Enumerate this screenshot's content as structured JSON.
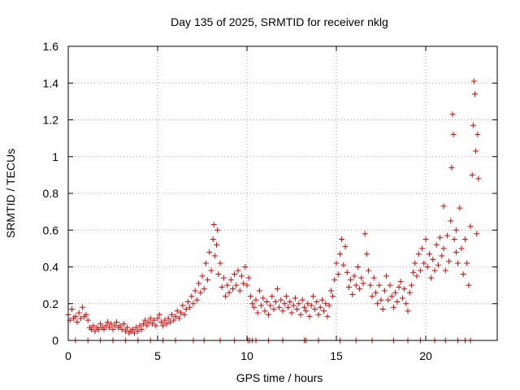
{
  "chart_data": {
    "type": "scatter",
    "title": "Day 135 of 2025, SRMTID for receiver nklg",
    "xlabel": "GPS time / hours",
    "ylabel": "SRMTID / TECUs",
    "xlim": [
      0,
      24
    ],
    "ylim": [
      0,
      1.6
    ],
    "xticks": [
      0,
      5,
      10,
      15,
      20
    ],
    "xtick_labels": [
      "0",
      "5",
      "10",
      "15",
      "20"
    ],
    "yticks": [
      0,
      0.2,
      0.4,
      0.6,
      0.8,
      1.0,
      1.2,
      1.4,
      1.6
    ],
    "ytick_labels": [
      "0",
      "0.2",
      "0.4",
      "0.6",
      "0.8",
      "1",
      "1.2",
      "1.4",
      "1.6"
    ],
    "grid": true,
    "marker": "+",
    "color": "#e00000",
    "series": [
      {
        "name": "SRMTID",
        "points": [
          [
            0.0,
            0.14
          ],
          [
            0.1,
            0.11
          ],
          [
            0.2,
            0.17
          ],
          [
            0.3,
            0.12
          ],
          [
            0.4,
            0.13
          ],
          [
            0.5,
            0.1
          ],
          [
            0.6,
            0.15
          ],
          [
            0.7,
            0.12
          ],
          [
            0.8,
            0.18
          ],
          [
            0.9,
            0.13
          ],
          [
            1.0,
            0.14
          ],
          [
            1.1,
            0.11
          ],
          [
            1.2,
            0.07
          ],
          [
            1.3,
            0.06
          ],
          [
            1.4,
            0.08
          ],
          [
            1.5,
            0.05
          ],
          [
            1.6,
            0.07
          ],
          [
            1.7,
            0.06
          ],
          [
            1.8,
            0.09
          ],
          [
            1.9,
            0.07
          ],
          [
            2.0,
            0.06
          ],
          [
            2.1,
            0.08
          ],
          [
            2.2,
            0.1
          ],
          [
            2.3,
            0.07
          ],
          [
            2.4,
            0.09
          ],
          [
            2.5,
            0.06
          ],
          [
            2.6,
            0.08
          ],
          [
            2.7,
            0.1
          ],
          [
            2.8,
            0.07
          ],
          [
            2.9,
            0.08
          ],
          [
            3.0,
            0.06
          ],
          [
            3.1,
            0.09
          ],
          [
            3.2,
            0.05
          ],
          [
            3.3,
            0.07
          ],
          [
            3.4,
            0.04
          ],
          [
            3.5,
            0.05
          ],
          [
            3.6,
            0.06
          ],
          [
            3.7,
            0.04
          ],
          [
            3.8,
            0.07
          ],
          [
            3.9,
            0.05
          ],
          [
            4.0,
            0.08
          ],
          [
            4.1,
            0.06
          ],
          [
            4.2,
            0.09
          ],
          [
            4.3,
            0.11
          ],
          [
            4.4,
            0.08
          ],
          [
            4.5,
            0.1
          ],
          [
            4.6,
            0.12
          ],
          [
            4.7,
            0.09
          ],
          [
            4.8,
            0.11
          ],
          [
            4.9,
            0.08
          ],
          [
            5.0,
            0.12
          ],
          [
            5.1,
            0.14
          ],
          [
            5.2,
            0.1
          ],
          [
            5.3,
            0.08
          ],
          [
            5.4,
            0.11
          ],
          [
            5.5,
            0.09
          ],
          [
            5.6,
            0.12
          ],
          [
            5.7,
            0.1
          ],
          [
            5.8,
            0.14
          ],
          [
            5.9,
            0.11
          ],
          [
            6.0,
            0.13
          ],
          [
            6.1,
            0.16
          ],
          [
            6.2,
            0.12
          ],
          [
            6.3,
            0.15
          ],
          [
            6.4,
            0.19
          ],
          [
            6.5,
            0.14
          ],
          [
            6.6,
            0.17
          ],
          [
            6.7,
            0.21
          ],
          [
            6.8,
            0.18
          ],
          [
            6.9,
            0.24
          ],
          [
            7.0,
            0.2
          ],
          [
            7.1,
            0.27
          ],
          [
            7.2,
            0.22
          ],
          [
            7.3,
            0.31
          ],
          [
            7.4,
            0.26
          ],
          [
            7.5,
            0.35
          ],
          [
            7.6,
            0.28
          ],
          [
            7.7,
            0.42
          ],
          [
            7.8,
            0.33
          ],
          [
            7.9,
            0.48
          ],
          [
            8.0,
            0.38
          ],
          [
            8.1,
            0.55
          ],
          [
            8.15,
            0.63
          ],
          [
            8.2,
            0.46
          ],
          [
            8.3,
            0.52
          ],
          [
            8.35,
            0.6
          ],
          [
            8.4,
            0.36
          ],
          [
            8.5,
            0.42
          ],
          [
            8.6,
            0.29
          ],
          [
            8.7,
            0.34
          ],
          [
            8.8,
            0.24
          ],
          [
            8.9,
            0.3
          ],
          [
            9.0,
            0.26
          ],
          [
            9.1,
            0.33
          ],
          [
            9.2,
            0.28
          ],
          [
            9.3,
            0.36
          ],
          [
            9.4,
            0.3
          ],
          [
            9.5,
            0.38
          ],
          [
            9.6,
            0.27
          ],
          [
            9.7,
            0.35
          ],
          [
            9.8,
            0.31
          ],
          [
            9.9,
            0.4
          ],
          [
            10.0,
            0.3
          ],
          [
            10.1,
            0.34
          ],
          [
            10.2,
            0.24
          ],
          [
            10.3,
            0.2
          ],
          [
            10.4,
            0.18
          ],
          [
            10.5,
            0.22
          ],
          [
            10.6,
            0.15
          ],
          [
            10.7,
            0.27
          ],
          [
            10.8,
            0.19
          ],
          [
            10.9,
            0.23
          ],
          [
            11.0,
            0.16
          ],
          [
            11.1,
            0.21
          ],
          [
            11.2,
            0.14
          ],
          [
            11.3,
            0.19
          ],
          [
            11.4,
            0.24
          ],
          [
            11.5,
            0.17
          ],
          [
            11.6,
            0.21
          ],
          [
            11.7,
            0.28
          ],
          [
            11.8,
            0.18
          ],
          [
            11.9,
            0.22
          ],
          [
            12.0,
            0.16
          ],
          [
            12.1,
            0.2
          ],
          [
            12.2,
            0.24
          ],
          [
            12.3,
            0.18
          ],
          [
            12.4,
            0.21
          ],
          [
            12.5,
            0.15
          ],
          [
            12.6,
            0.19
          ],
          [
            12.7,
            0.23
          ],
          [
            12.8,
            0.17
          ],
          [
            12.9,
            0.2
          ],
          [
            13.0,
            0.14
          ],
          [
            13.1,
            0.22
          ],
          [
            13.2,
            0.18
          ],
          [
            13.3,
            0.16
          ],
          [
            13.4,
            0.2
          ],
          [
            13.5,
            0.13
          ],
          [
            13.6,
            0.19
          ],
          [
            13.7,
            0.24
          ],
          [
            13.8,
            0.17
          ],
          [
            13.9,
            0.21
          ],
          [
            14.0,
            0.14
          ],
          [
            14.1,
            0.18
          ],
          [
            14.2,
            0.22
          ],
          [
            14.3,
            0.16
          ],
          [
            14.4,
            0.2
          ],
          [
            14.5,
            0.13
          ],
          [
            14.6,
            0.19
          ],
          [
            14.7,
            0.27
          ],
          [
            14.8,
            0.24
          ],
          [
            14.9,
            0.33
          ],
          [
            15.0,
            0.42
          ],
          [
            15.1,
            0.36
          ],
          [
            15.2,
            0.47
          ],
          [
            15.3,
            0.55
          ],
          [
            15.4,
            0.41
          ],
          [
            15.5,
            0.51
          ],
          [
            15.6,
            0.37
          ],
          [
            15.7,
            0.29
          ],
          [
            15.8,
            0.33
          ],
          [
            15.9,
            0.25
          ],
          [
            16.0,
            0.35
          ],
          [
            16.1,
            0.3
          ],
          [
            16.2,
            0.4
          ],
          [
            16.3,
            0.28
          ],
          [
            16.4,
            0.34
          ],
          [
            16.5,
            0.31
          ],
          [
            16.6,
            0.58
          ],
          [
            16.7,
            0.47
          ],
          [
            16.8,
            0.38
          ],
          [
            16.9,
            0.3
          ],
          [
            17.0,
            0.24
          ],
          [
            17.1,
            0.34
          ],
          [
            17.2,
            0.26
          ],
          [
            17.3,
            0.2
          ],
          [
            17.4,
            0.3
          ],
          [
            17.5,
            0.22
          ],
          [
            17.6,
            0.17
          ],
          [
            17.7,
            0.27
          ],
          [
            17.8,
            0.35
          ],
          [
            17.9,
            0.22
          ],
          [
            18.0,
            0.3
          ],
          [
            18.1,
            0.24
          ],
          [
            18.2,
            0.18
          ],
          [
            18.3,
            0.26
          ],
          [
            18.4,
            0.21
          ],
          [
            18.5,
            0.29
          ],
          [
            18.6,
            0.32
          ],
          [
            18.7,
            0.23
          ],
          [
            18.8,
            0.28
          ],
          [
            18.9,
            0.2
          ],
          [
            19.0,
            0.16
          ],
          [
            19.1,
            0.26
          ],
          [
            19.2,
            0.3
          ],
          [
            19.3,
            0.37
          ],
          [
            19.4,
            0.42
          ],
          [
            19.5,
            0.35
          ],
          [
            19.6,
            0.47
          ],
          [
            19.7,
            0.38
          ],
          [
            19.8,
            0.5
          ],
          [
            19.9,
            0.42
          ],
          [
            20.0,
            0.55
          ],
          [
            20.1,
            0.4
          ],
          [
            20.2,
            0.47
          ],
          [
            20.3,
            0.34
          ],
          [
            20.4,
            0.44
          ],
          [
            20.5,
            0.38
          ],
          [
            20.6,
            0.52
          ],
          [
            20.7,
            0.41
          ],
          [
            20.8,
            0.56
          ],
          [
            20.9,
            0.46
          ],
          [
            21.0,
            0.5
          ],
          [
            21.1,
            0.38
          ],
          [
            21.2,
            0.57
          ],
          [
            21.3,
            0.43
          ],
          [
            21.4,
            0.65
          ],
          [
            21.45,
            0.94
          ],
          [
            21.5,
            1.23
          ],
          [
            21.55,
            1.12
          ],
          [
            21.6,
            0.55
          ],
          [
            21.7,
            0.6
          ],
          [
            21.8,
            0.42
          ],
          [
            21.9,
            0.72
          ],
          [
            22.0,
            0.5
          ],
          [
            22.1,
            0.36
          ],
          [
            22.2,
            0.55
          ],
          [
            22.3,
            0.42
          ],
          [
            22.4,
            0.3
          ],
          [
            22.5,
            0.62
          ],
          [
            22.6,
            0.9
          ],
          [
            22.65,
            1.17
          ],
          [
            22.7,
            1.41
          ],
          [
            22.75,
            1.34
          ],
          [
            22.8,
            1.03
          ],
          [
            22.85,
            0.58
          ],
          [
            22.9,
            1.12
          ],
          [
            22.95,
            0.88
          ],
          [
            21.0,
            0.73
          ],
          [
            21.7,
            0.48
          ]
        ]
      }
    ],
    "zero_points_x": [
      0.4,
      1.1,
      1.8,
      2.5,
      3.2,
      3.9,
      4.6,
      5.3,
      6.0,
      7.0,
      7.6,
      8.5,
      9.3,
      10.05,
      10.15,
      10.3,
      10.5,
      11.2,
      12.0,
      13.2,
      13.3,
      14.0,
      15.2,
      16.1,
      17.0,
      18.2,
      19.0,
      19.7,
      20.5,
      21.1,
      21.8,
      22.2,
      22.5
    ]
  }
}
